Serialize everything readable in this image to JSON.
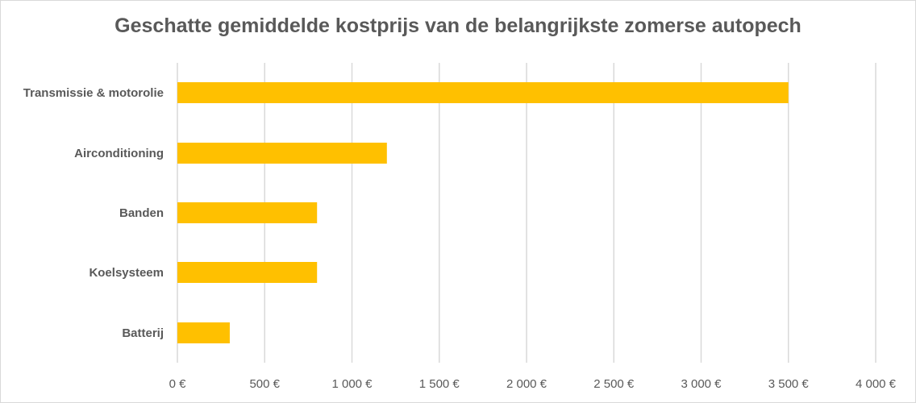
{
  "chart_data": {
    "type": "bar",
    "orientation": "horizontal",
    "title": "Geschatte gemiddelde kostprijs van de belangrijkste zomerse autopech",
    "categories": [
      "Transmissie & motorolie",
      "Airconditioning",
      "Banden",
      "Koelsysteem",
      "Batterij"
    ],
    "values": [
      3500,
      1200,
      800,
      800,
      300
    ],
    "xlim": [
      0,
      4000
    ],
    "x_ticks": [
      0,
      500,
      1000,
      1500,
      2000,
      2500,
      3000,
      3500,
      4000
    ],
    "x_tick_labels": [
      "0 €",
      "500 €",
      "1 000 €",
      "1 500 €",
      "2 000 €",
      "2 500 €",
      "3 000 €",
      "3 500 €",
      "4 000 €"
    ],
    "grid": "vertical",
    "bar_color": "#FFC000"
  }
}
